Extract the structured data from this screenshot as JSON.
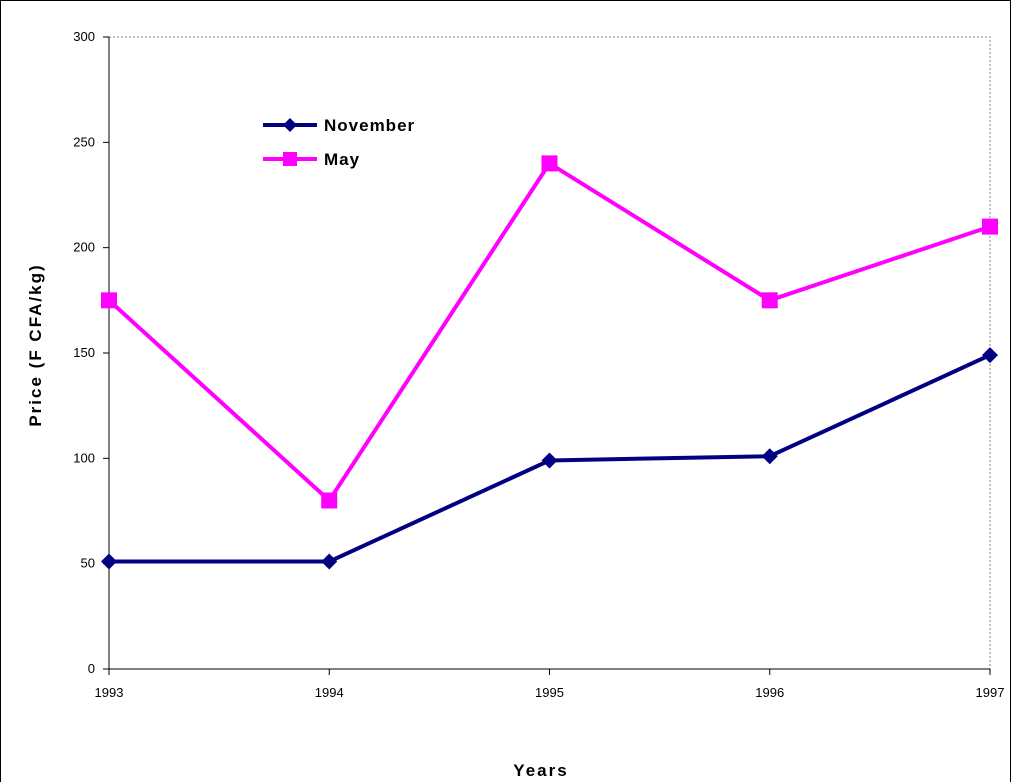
{
  "chart_data": {
    "type": "line",
    "title": "",
    "xlabel": "Years",
    "ylabel": "Price (F CFA/kg)",
    "x": [
      "1993",
      "1994",
      "1995",
      "1996",
      "1997"
    ],
    "yticks": [
      "0",
      "50",
      "100",
      "150",
      "200",
      "250",
      "300"
    ],
    "ylim": [
      0,
      300
    ],
    "grid": false,
    "legend_position": "top-left",
    "series": [
      {
        "name": "November",
        "values": [
          51,
          51,
          99,
          101,
          149
        ],
        "color": "#000080",
        "marker": "diamond"
      },
      {
        "name": "May",
        "values": [
          175,
          80,
          240,
          175,
          210
        ],
        "color": "#ff00ff",
        "marker": "square"
      }
    ]
  }
}
